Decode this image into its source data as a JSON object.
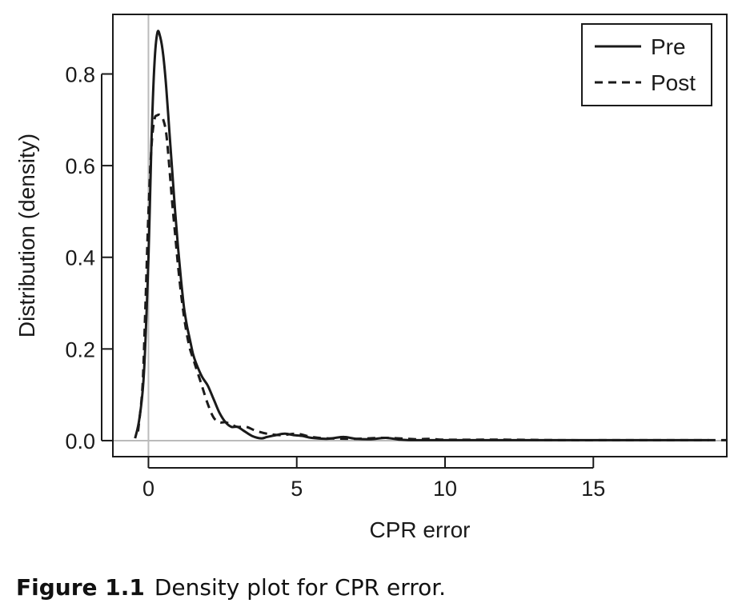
{
  "caption": {
    "label": "Figure 1.1",
    "text": "Density plot for CPR error."
  },
  "chart_data": {
    "type": "line",
    "title": "",
    "xlabel": "CPR error",
    "ylabel": "Distribution (density)",
    "xlim": [
      -1.2,
      19.5
    ],
    "ylim": [
      -0.035,
      0.93
    ],
    "xticks": [
      0,
      5,
      10,
      15
    ],
    "yticks": [
      0.0,
      0.2,
      0.4,
      0.6,
      0.8
    ],
    "ytick_labels": [
      "0.0",
      "0.2",
      "0.4",
      "0.6",
      "0.8"
    ],
    "reference_lines": {
      "vertical_x": 0,
      "horizontal_y": 0,
      "color": "#bbbbbb"
    },
    "grid": false,
    "legend": {
      "position": "top-right"
    },
    "series": [
      {
        "name": "Pre",
        "style": "solid",
        "color": "#1a1a1a",
        "x": [
          -0.45,
          -0.3,
          -0.15,
          0.0,
          0.1,
          0.2,
          0.3,
          0.4,
          0.5,
          0.6,
          0.7,
          0.8,
          0.9,
          1.0,
          1.1,
          1.2,
          1.3,
          1.4,
          1.5,
          1.6,
          1.8,
          2.0,
          2.2,
          2.4,
          2.6,
          2.8,
          3.0,
          3.2,
          3.5,
          3.8,
          4.0,
          4.3,
          4.6,
          4.9,
          5.2,
          5.5,
          6.0,
          6.3,
          6.6,
          7.0,
          7.5,
          8.0,
          8.5,
          9.0,
          10.0,
          12.0,
          14.0,
          16.0,
          18.0,
          18.9
        ],
        "y": [
          0.005,
          0.05,
          0.15,
          0.4,
          0.65,
          0.82,
          0.89,
          0.88,
          0.84,
          0.77,
          0.68,
          0.59,
          0.5,
          0.42,
          0.35,
          0.29,
          0.25,
          0.22,
          0.19,
          0.17,
          0.14,
          0.12,
          0.09,
          0.06,
          0.04,
          0.03,
          0.03,
          0.022,
          0.01,
          0.005,
          0.008,
          0.012,
          0.015,
          0.012,
          0.01,
          0.006,
          0.004,
          0.006,
          0.008,
          0.004,
          0.003,
          0.006,
          0.002,
          0.001,
          0.001,
          0.001,
          0.001,
          0.001,
          0.001,
          0.001
        ]
      },
      {
        "name": "Post",
        "style": "dashed",
        "color": "#1a1a1a",
        "x": [
          -0.35,
          -0.2,
          -0.1,
          0.0,
          0.1,
          0.2,
          0.3,
          0.4,
          0.5,
          0.6,
          0.7,
          0.8,
          0.9,
          1.0,
          1.1,
          1.2,
          1.3,
          1.4,
          1.5,
          1.6,
          1.8,
          2.0,
          2.2,
          2.4,
          2.6,
          2.8,
          3.0,
          3.3,
          3.6,
          4.0,
          4.5,
          5.0,
          5.5,
          6.0,
          7.0,
          8.0,
          9.0,
          9.5,
          10.0,
          12.0,
          14.0,
          16.0,
          18.0,
          19.5
        ],
        "y": [
          0.02,
          0.12,
          0.3,
          0.5,
          0.64,
          0.7,
          0.71,
          0.71,
          0.7,
          0.67,
          0.6,
          0.52,
          0.45,
          0.38,
          0.32,
          0.27,
          0.23,
          0.2,
          0.18,
          0.16,
          0.12,
          0.08,
          0.05,
          0.04,
          0.04,
          0.035,
          0.03,
          0.03,
          0.022,
          0.015,
          0.012,
          0.015,
          0.008,
          0.005,
          0.004,
          0.006,
          0.003,
          0.004,
          0.002,
          0.002,
          0.001,
          0.001,
          0.001,
          0.001
        ]
      }
    ]
  }
}
